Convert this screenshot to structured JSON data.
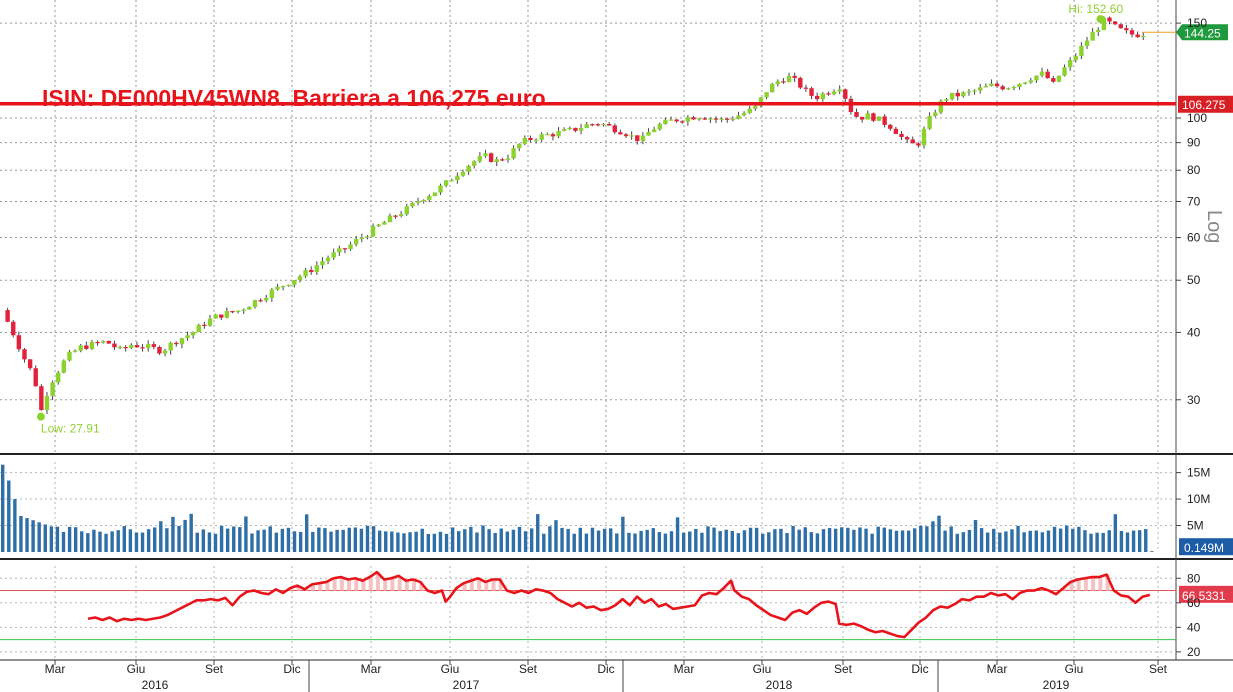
{
  "title": "ISIN: DE000HV45WN8. Barriera a 106,275 euro",
  "axis_scale_label": "Log",
  "colors": {
    "up": "#8cd22e",
    "down": "#e2213a",
    "barrier": "#e8141b",
    "volume": "#2f6fa6",
    "rsi": "#e8141b"
  },
  "chart_data": [
    {
      "type": "candlestick",
      "panel": "price",
      "scale": "log",
      "ylim": [
        24,
        160
      ],
      "y_ticks": [
        30,
        40,
        50,
        60,
        70,
        80,
        90,
        100,
        150
      ],
      "grid": true,
      "x_tick_labels": [
        "Mar",
        "Giu",
        "Set",
        "Dic",
        "Mar",
        "Giu",
        "Set",
        "Dic",
        "Mar",
        "Giu",
        "Set",
        "Dic",
        "Mar",
        "Giu",
        "Set"
      ],
      "year_labels": [
        "2016",
        "2017",
        "2018",
        "2019"
      ],
      "barrier": {
        "value": 106.275,
        "label": "106.275"
      },
      "last": {
        "value": 144.25,
        "label": "144.25"
      },
      "high": {
        "value": 152.6,
        "label": "Hi: 152.60"
      },
      "low": {
        "value": 27.91,
        "label": "Low: 27.91"
      },
      "close_path": [
        [
          0,
          44
        ],
        [
          5,
          40
        ],
        [
          10,
          36
        ],
        [
          15,
          33
        ],
        [
          18,
          28.5
        ],
        [
          22,
          32
        ],
        [
          26,
          34
        ],
        [
          30,
          36
        ],
        [
          36,
          37.5
        ],
        [
          42,
          38
        ],
        [
          48,
          38.5
        ],
        [
          55,
          37
        ],
        [
          60,
          38
        ],
        [
          68,
          37.5
        ],
        [
          74,
          37
        ],
        [
          80,
          38.5
        ],
        [
          88,
          40
        ],
        [
          95,
          42
        ],
        [
          100,
          43
        ],
        [
          110,
          44
        ],
        [
          118,
          46
        ],
        [
          126,
          48
        ],
        [
          134,
          50
        ],
        [
          142,
          52
        ],
        [
          150,
          55
        ],
        [
          158,
          57
        ],
        [
          166,
          60
        ],
        [
          174,
          63
        ],
        [
          182,
          66
        ],
        [
          188,
          68
        ],
        [
          194,
          71
        ],
        [
          200,
          73
        ],
        [
          206,
          76
        ],
        [
          212,
          80
        ],
        [
          218,
          83
        ],
        [
          224,
          85
        ],
        [
          228,
          83
        ],
        [
          234,
          85
        ],
        [
          240,
          90
        ],
        [
          246,
          92
        ],
        [
          252,
          93
        ],
        [
          258,
          94
        ],
        [
          264,
          95
        ],
        [
          270,
          97
        ],
        [
          276,
          98
        ],
        [
          282,
          96
        ],
        [
          288,
          94
        ],
        [
          292,
          92
        ],
        [
          296,
          91
        ],
        [
          300,
          95
        ],
        [
          304,
          97
        ],
        [
          310,
          99
        ],
        [
          316,
          100
        ],
        [
          322,
          101
        ],
        [
          328,
          100
        ],
        [
          334,
          99
        ],
        [
          340,
          101
        ],
        [
          348,
          104
        ],
        [
          354,
          113
        ],
        [
          360,
          118
        ],
        [
          364,
          119
        ],
        [
          368,
          116
        ],
        [
          372,
          112
        ],
        [
          376,
          109
        ],
        [
          380,
          111
        ],
        [
          384,
          113
        ],
        [
          388,
          115
        ],
        [
          392,
          104
        ],
        [
          396,
          100
        ],
        [
          400,
          101
        ],
        [
          404,
          100
        ],
        [
          408,
          98
        ],
        [
          412,
          96
        ],
        [
          416,
          92
        ],
        [
          420,
          89
        ],
        [
          424,
          90
        ],
        [
          428,
          98
        ],
        [
          432,
          104
        ],
        [
          436,
          109
        ],
        [
          440,
          110
        ],
        [
          446,
          111
        ],
        [
          452,
          113
        ],
        [
          458,
          115
        ],
        [
          464,
          114
        ],
        [
          470,
          116
        ],
        [
          476,
          119
        ],
        [
          482,
          121
        ],
        [
          486,
          115
        ],
        [
          490,
          122
        ],
        [
          494,
          127
        ],
        [
          498,
          133
        ],
        [
          502,
          140
        ],
        [
          506,
          146
        ],
        [
          510,
          152
        ],
        [
          514,
          148
        ],
        [
          518,
          145
        ],
        [
          522,
          143
        ],
        [
          526,
          143
        ],
        [
          530,
          144.25
        ]
      ],
      "volume": {
        "ylim": [
          0,
          17
        ],
        "y_ticks": [
          5,
          10,
          15
        ],
        "y_tick_labels": [
          "5M",
          "10M",
          "15M"
        ],
        "last_label": "0.149M"
      },
      "rsi": {
        "ylim": [
          15,
          90
        ],
        "y_ticks": [
          20,
          40,
          60,
          80
        ],
        "upper": 70,
        "lower": 30,
        "last_label": "66.5331",
        "values": [
          [
            20,
            47
          ],
          [
            24,
            48
          ],
          [
            28,
            46
          ],
          [
            32,
            48
          ],
          [
            36,
            45
          ],
          [
            40,
            47
          ],
          [
            44,
            46
          ],
          [
            48,
            47
          ],
          [
            52,
            46
          ],
          [
            56,
            47
          ],
          [
            60,
            48
          ],
          [
            64,
            50
          ],
          [
            68,
            53
          ],
          [
            72,
            56
          ],
          [
            76,
            59
          ],
          [
            80,
            62
          ],
          [
            84,
            62
          ],
          [
            88,
            63
          ],
          [
            92,
            62
          ],
          [
            96,
            64
          ],
          [
            100,
            58
          ],
          [
            104,
            65
          ],
          [
            108,
            69
          ],
          [
            112,
            70
          ],
          [
            116,
            68
          ],
          [
            120,
            67
          ],
          [
            124,
            71
          ],
          [
            128,
            68
          ],
          [
            132,
            72
          ],
          [
            136,
            74
          ],
          [
            140,
            71
          ],
          [
            144,
            75
          ],
          [
            148,
            76
          ],
          [
            152,
            77
          ],
          [
            156,
            80
          ],
          [
            160,
            81
          ],
          [
            164,
            79
          ],
          [
            168,
            80
          ],
          [
            172,
            78
          ],
          [
            176,
            81
          ],
          [
            180,
            85
          ],
          [
            184,
            79
          ],
          [
            188,
            80
          ],
          [
            192,
            82
          ],
          [
            196,
            78
          ],
          [
            200,
            79
          ],
          [
            204,
            77
          ],
          [
            208,
            70
          ],
          [
            212,
            68
          ],
          [
            216,
            70
          ],
          [
            218,
            61
          ],
          [
            220,
            64
          ],
          [
            224,
            72
          ],
          [
            228,
            76
          ],
          [
            232,
            78
          ],
          [
            236,
            80
          ],
          [
            240,
            77
          ],
          [
            244,
            79
          ],
          [
            248,
            79
          ],
          [
            252,
            70
          ],
          [
            256,
            68
          ],
          [
            260,
            70
          ],
          [
            264,
            68
          ],
          [
            268,
            71
          ],
          [
            272,
            70
          ],
          [
            276,
            68
          ],
          [
            280,
            63
          ],
          [
            284,
            60
          ],
          [
            288,
            57
          ],
          [
            292,
            60
          ],
          [
            296,
            56
          ],
          [
            300,
            57
          ],
          [
            304,
            54
          ],
          [
            308,
            55
          ],
          [
            312,
            58
          ],
          [
            316,
            63
          ],
          [
            320,
            58
          ],
          [
            324,
            65
          ],
          [
            328,
            60
          ],
          [
            332,
            63
          ],
          [
            336,
            57
          ],
          [
            340,
            59
          ],
          [
            344,
            55
          ],
          [
            348,
            56
          ],
          [
            352,
            57
          ],
          [
            356,
            58
          ],
          [
            360,
            66
          ],
          [
            364,
            68
          ],
          [
            368,
            67
          ],
          [
            372,
            72
          ],
          [
            376,
            78
          ],
          [
            378,
            70
          ],
          [
            382,
            65
          ],
          [
            386,
            63
          ],
          [
            390,
            58
          ],
          [
            394,
            54
          ],
          [
            398,
            50
          ],
          [
            402,
            48
          ],
          [
            406,
            46
          ],
          [
            410,
            52
          ],
          [
            414,
            54
          ],
          [
            418,
            51
          ],
          [
            422,
            56
          ],
          [
            426,
            60
          ],
          [
            430,
            61
          ],
          [
            434,
            59
          ],
          [
            436,
            43
          ],
          [
            440,
            42
          ],
          [
            444,
            43
          ],
          [
            448,
            41
          ],
          [
            452,
            38
          ],
          [
            456,
            36
          ],
          [
            460,
            37
          ],
          [
            464,
            35
          ],
          [
            468,
            33
          ],
          [
            472,
            32
          ],
          [
            476,
            38
          ],
          [
            480,
            44
          ],
          [
            484,
            48
          ],
          [
            488,
            54
          ],
          [
            492,
            57
          ],
          [
            496,
            56
          ],
          [
            500,
            59
          ],
          [
            504,
            63
          ],
          [
            508,
            62
          ],
          [
            512,
            65
          ],
          [
            516,
            65
          ],
          [
            520,
            68
          ],
          [
            524,
            66
          ],
          [
            528,
            67
          ],
          [
            532,
            63
          ],
          [
            536,
            68
          ],
          [
            540,
            70
          ],
          [
            544,
            70
          ],
          [
            548,
            72
          ],
          [
            552,
            70
          ],
          [
            556,
            67
          ],
          [
            560,
            72
          ],
          [
            564,
            77
          ],
          [
            568,
            79
          ],
          [
            572,
            80
          ],
          [
            576,
            81
          ],
          [
            580,
            81
          ],
          [
            584,
            83
          ],
          [
            588,
            70
          ],
          [
            592,
            66
          ],
          [
            596,
            65
          ],
          [
            600,
            60
          ],
          [
            604,
            65
          ],
          [
            608,
            66.5
          ]
        ]
      }
    }
  ]
}
